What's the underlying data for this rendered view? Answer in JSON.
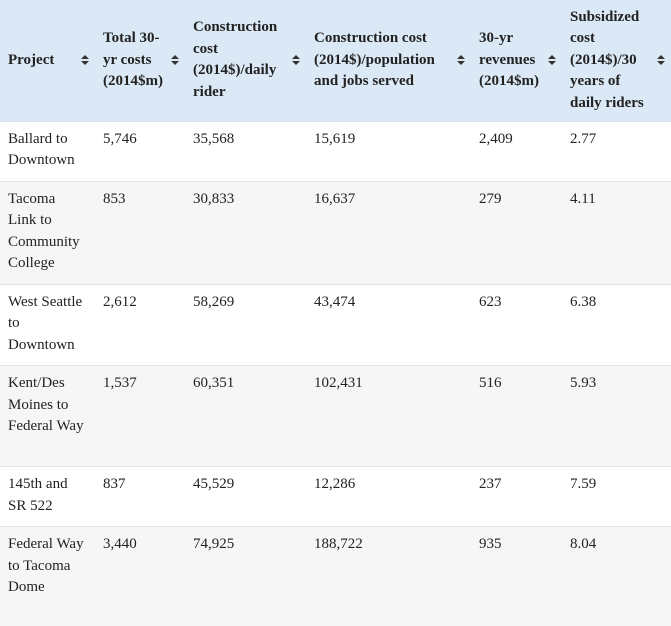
{
  "table": {
    "headers": [
      "Project",
      "Total 30-yr costs (2014$m)",
      "Construction cost (2014$)/daily rider",
      "Construction cost (2014$)/population and jobs served",
      "30-yr revenues (2014$m)",
      "Subsidized cost (2014$)/30 years of daily riders"
    ],
    "rows": [
      [
        "Ballard to Downtown",
        "5,746",
        "35,568",
        "15,619",
        "2,409",
        "2.77"
      ],
      [
        "Tacoma Link to Community College",
        "853",
        "30,833",
        "16,637",
        "279",
        "4.11"
      ],
      [
        "West Seattle to Downtown",
        "2,612",
        "58,269",
        "43,474",
        "623",
        "6.38"
      ],
      [
        "Kent/Des Moines to Federal Way",
        "1,537",
        "60,351",
        "102,431",
        "516",
        "5.93"
      ],
      [
        "145th and SR 522",
        "837",
        "45,529",
        "12,286",
        "237",
        "7.59"
      ],
      [
        "Federal Way to Tacoma Dome",
        "3,440",
        "74,925",
        "188,722",
        "935",
        "8.04"
      ]
    ]
  }
}
